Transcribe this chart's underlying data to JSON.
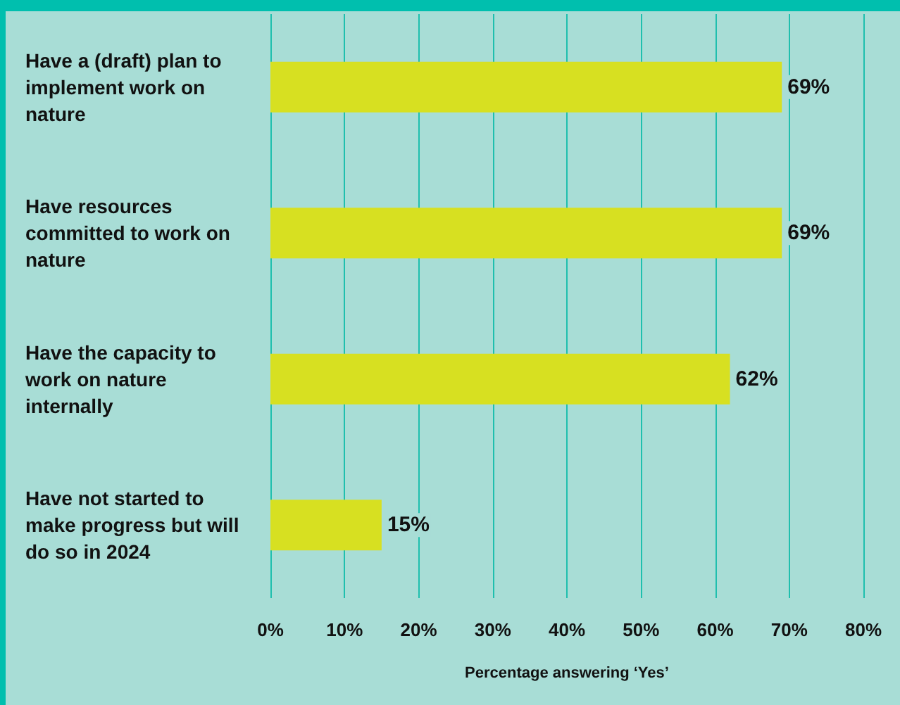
{
  "chart_data": {
    "type": "bar",
    "orientation": "horizontal",
    "xlabel": "Percentage answering ‘Yes’",
    "categories": [
      "Have a (draft) plan to implement work on nature",
      "Have resources committed to work on nature",
      "Have the capacity to work on nature internally",
      "Have not started to make progress but will do so in 2024"
    ],
    "values": [
      69,
      69,
      62,
      15
    ],
    "color": "#d7e021",
    "value_labels": [
      "69%",
      "69%",
      "62%",
      "15%"
    ],
    "xlim": [
      0,
      80
    ],
    "xticks": [
      {
        "value": 0,
        "label": "0%"
      },
      {
        "value": 10,
        "label": "10%"
      },
      {
        "value": 20,
        "label": "20%"
      },
      {
        "value": 30,
        "label": "30%"
      },
      {
        "value": 40,
        "label": "40%"
      },
      {
        "value": 50,
        "label": "50%"
      },
      {
        "value": 60,
        "label": "60%"
      },
      {
        "value": 70,
        "label": "70%"
      },
      {
        "value": 80,
        "label": "80%"
      }
    ],
    "grid": "x"
  }
}
